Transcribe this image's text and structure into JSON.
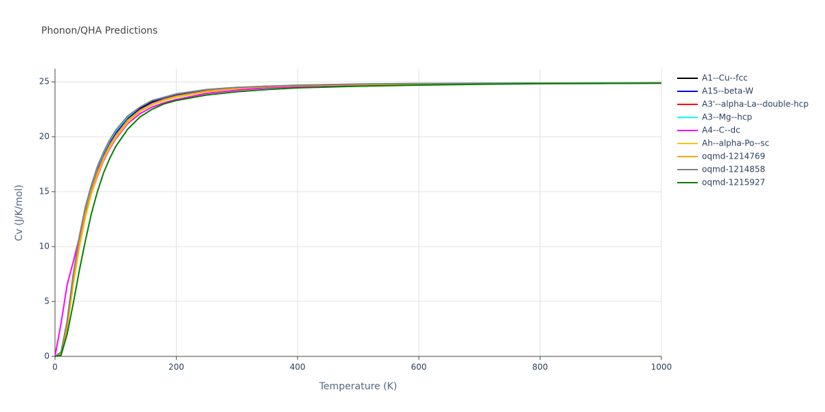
{
  "chart_data": {
    "type": "line",
    "title": "Phonon/QHA Predictions",
    "x_label": "Temperature (K)",
    "y_label": "Cv (J/K/mol)",
    "x": [
      0,
      10,
      20,
      30,
      40,
      50,
      60,
      70,
      80,
      90,
      100,
      120,
      140,
      160,
      180,
      200,
      250,
      300,
      350,
      400,
      500,
      600,
      700,
      800,
      900,
      1000
    ],
    "series": [
      {
        "name": "A1--Cu--fcc",
        "color": "#000000",
        "values": [
          0,
          0.3,
          3.0,
          7.2,
          10.6,
          13.3,
          15.4,
          17.1,
          18.4,
          19.5,
          20.4,
          21.7,
          22.6,
          23.2,
          23.5,
          23.8,
          24.2,
          24.45,
          24.6,
          24.65,
          24.75,
          24.8,
          24.85,
          24.87,
          24.88,
          24.89
        ]
      },
      {
        "name": "A15--beta-W",
        "color": "#0000ff",
        "values": [
          0,
          0.3,
          2.9,
          7.1,
          10.5,
          13.2,
          15.3,
          17.0,
          18.3,
          19.4,
          20.3,
          21.6,
          22.5,
          23.1,
          23.5,
          23.8,
          24.2,
          24.45,
          24.6,
          24.65,
          24.75,
          24.8,
          24.85,
          24.87,
          24.88,
          24.89
        ]
      },
      {
        "name": "A3'--alpha-La--double-hcp",
        "color": "#ff0000",
        "values": [
          0,
          0.3,
          2.8,
          6.9,
          10.3,
          13.0,
          15.1,
          16.8,
          18.1,
          19.2,
          20.1,
          21.5,
          22.4,
          23.0,
          23.4,
          23.7,
          24.15,
          24.4,
          24.55,
          24.65,
          24.75,
          24.8,
          24.85,
          24.87,
          24.88,
          24.89
        ]
      },
      {
        "name": "A3--Mg--hcp",
        "color": "#00ffff",
        "values": [
          0,
          0.4,
          3.1,
          7.4,
          10.8,
          13.5,
          15.5,
          17.2,
          18.5,
          19.6,
          20.5,
          21.8,
          22.7,
          23.3,
          23.6,
          23.9,
          24.3,
          24.5,
          24.6,
          24.7,
          24.8,
          24.85,
          24.87,
          24.88,
          24.89,
          24.9
        ]
      },
      {
        "name": "A4--C--dc",
        "color": "#ff00ff",
        "values": [
          0,
          3.0,
          6.5,
          8.6,
          10.8,
          12.8,
          14.8,
          16.4,
          17.8,
          18.9,
          19.8,
          21.2,
          22.1,
          22.7,
          23.1,
          23.4,
          23.95,
          24.25,
          24.45,
          24.55,
          24.7,
          24.78,
          24.83,
          24.86,
          24.87,
          24.88
        ]
      },
      {
        "name": "Ah--alpha-Po--sc",
        "color": "#f5c518",
        "values": [
          0,
          0.2,
          2.5,
          6.5,
          9.9,
          12.6,
          14.8,
          16.5,
          17.9,
          19.0,
          19.9,
          21.3,
          22.3,
          22.9,
          23.3,
          23.6,
          24.1,
          24.4,
          24.55,
          24.65,
          24.75,
          24.8,
          24.85,
          24.87,
          24.88,
          24.89
        ]
      },
      {
        "name": "oqmd-1214769",
        "color": "#ffa500",
        "values": [
          0,
          0.25,
          2.7,
          6.8,
          10.2,
          12.9,
          15.0,
          16.7,
          18.1,
          19.2,
          20.1,
          21.5,
          22.4,
          23.0,
          23.4,
          23.7,
          24.15,
          24.4,
          24.55,
          24.65,
          24.75,
          24.8,
          24.85,
          24.87,
          24.88,
          24.89
        ]
      },
      {
        "name": "oqmd-1214858",
        "color": "#808080",
        "values": [
          0,
          0.4,
          3.2,
          7.5,
          10.9,
          13.6,
          15.6,
          17.3,
          18.6,
          19.7,
          20.6,
          21.9,
          22.7,
          23.3,
          23.6,
          23.9,
          24.3,
          24.5,
          24.6,
          24.7,
          24.8,
          24.85,
          24.87,
          24.88,
          24.89,
          24.9
        ]
      },
      {
        "name": "oqmd-1215927",
        "color": "#008000",
        "values": [
          0,
          0.1,
          2.0,
          4.8,
          7.8,
          10.5,
          13.0,
          15.0,
          16.7,
          18.0,
          19.1,
          20.7,
          21.8,
          22.5,
          23.0,
          23.3,
          23.8,
          24.1,
          24.3,
          24.45,
          24.6,
          24.7,
          24.78,
          24.83,
          24.85,
          24.87
        ]
      }
    ],
    "xlim": [
      0,
      1000
    ],
    "xticks": [
      0,
      200,
      400,
      600,
      800,
      1000
    ],
    "ylim": [
      0,
      26.2
    ],
    "yticks": [
      0,
      5,
      10,
      15,
      20,
      25
    ],
    "grid": true,
    "legend": "right"
  }
}
